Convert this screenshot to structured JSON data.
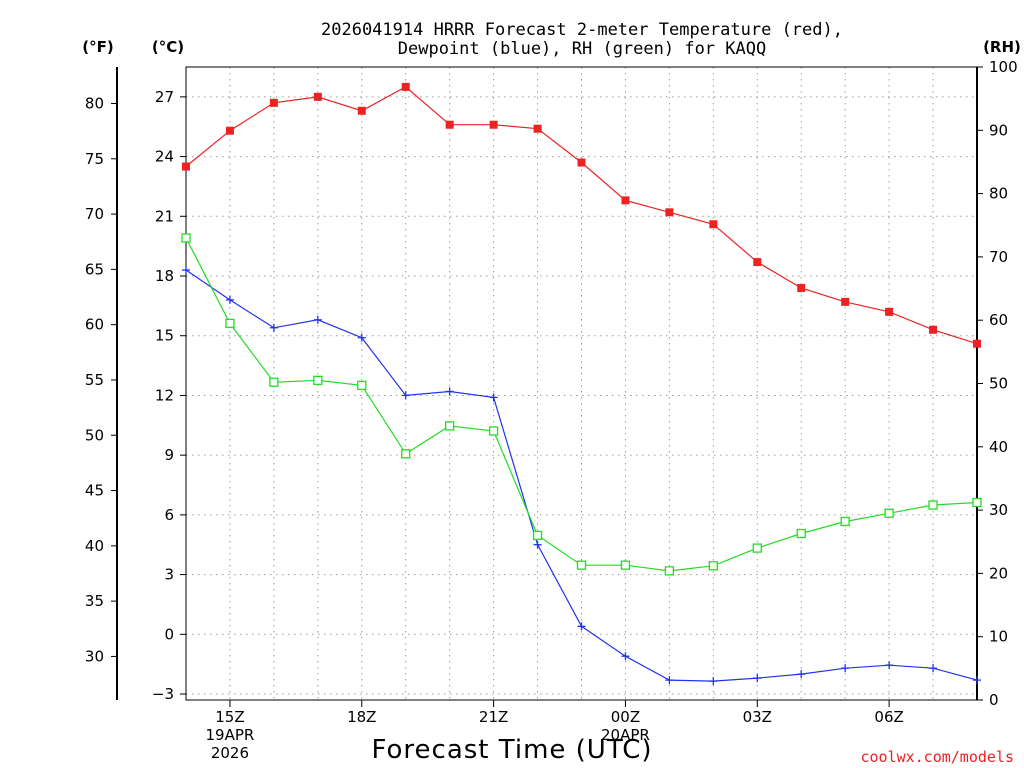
{
  "chart_data": {
    "type": "line",
    "title_line1": "2026041914 HRRR Forecast 2-meter Temperature (red),",
    "title_line2": "Dewpoint (blue), RH (green) for KAQQ",
    "xlabel": "Forecast Time (UTC)",
    "credit": "coolwx.com/models",
    "unit_f": "(°F)",
    "unit_c": "(°C)",
    "unit_rh": "(RH)",
    "x_hours": [
      14,
      15,
      16,
      17,
      18,
      19,
      20,
      21,
      22,
      23,
      24,
      25,
      26,
      27,
      28,
      29,
      30,
      31,
      32
    ],
    "x_tick_hours": [
      15,
      18,
      21,
      24,
      27,
      30
    ],
    "x_ticks": [
      {
        "line1": "15Z",
        "line2": "19APR",
        "line3": "2026"
      },
      {
        "line1": "18Z",
        "line2": "",
        "line3": ""
      },
      {
        "line1": "21Z",
        "line2": "",
        "line3": ""
      },
      {
        "line1": "00Z",
        "line2": "20APR",
        "line3": ""
      },
      {
        "line1": "03Z",
        "line2": "",
        "line3": ""
      },
      {
        "line1": "06Z",
        "line2": "",
        "line3": ""
      }
    ],
    "ylim_c": [
      -3.3,
      28.5
    ],
    "ylim_rh": [
      0,
      100
    ],
    "left_c_ticks": [
      "−3",
      "0",
      "3",
      "6",
      "9",
      "12",
      "15",
      "18",
      "21",
      "24",
      "27"
    ],
    "left_f_ticks": [
      "30",
      "35",
      "40",
      "45",
      "50",
      "55",
      "60",
      "65",
      "70",
      "75",
      "80"
    ],
    "right_rh_ticks": [
      "0",
      "10",
      "20",
      "30",
      "40",
      "50",
      "60",
      "70",
      "80",
      "90",
      "100"
    ],
    "series": [
      {
        "name": "Temperature (°C)",
        "color": "#ee2222",
        "marker": "filled-square",
        "axis": "left",
        "values": [
          23.5,
          25.3,
          26.7,
          27.0,
          26.3,
          27.5,
          25.6,
          25.6,
          25.4,
          23.7,
          21.8,
          21.2,
          20.6,
          18.7,
          17.4,
          16.7,
          16.2,
          15.3,
          14.6
        ]
      },
      {
        "name": "Dewpoint (°C)",
        "color": "#2233ee",
        "marker": "plus",
        "axis": "left",
        "values": [
          18.3,
          16.8,
          15.4,
          15.8,
          14.9,
          12.0,
          12.2,
          11.9,
          4.5,
          0.4,
          -1.1,
          -2.3,
          -2.35,
          -2.2,
          -2.0,
          -1.7,
          -1.55,
          -1.7,
          -2.3
        ]
      },
      {
        "name": "RH (%)",
        "color": "#22dd22",
        "marker": "open-square",
        "axis": "right",
        "values": [
          73,
          59.5,
          50.2,
          50.5,
          49.7,
          38.9,
          43.3,
          42.5,
          26,
          21.3,
          21.3,
          20.4,
          21.2,
          24,
          26.3,
          28.2,
          29.5,
          30.8,
          31.2
        ]
      }
    ]
  }
}
